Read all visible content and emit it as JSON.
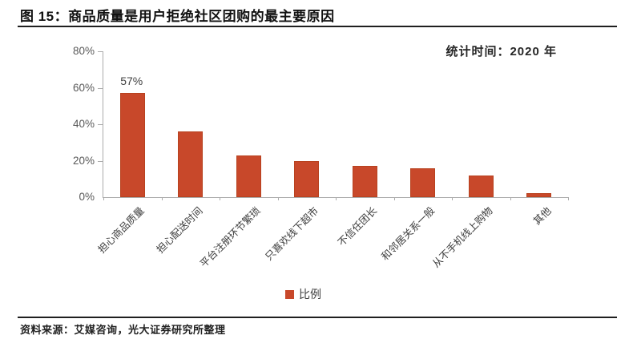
{
  "header": {
    "title": "图 15：商品质量是用户拒绝社区团购的最主要原因"
  },
  "chart_data": {
    "type": "bar",
    "title": "商品质量是用户拒绝社区团购的最主要原因",
    "annotation": "统计时间：2020 年",
    "categories": [
      "担心商品质量",
      "担心配送时间",
      "平台注册环节繁琐",
      "只喜欢线下超市",
      "不信任团长",
      "和邻居关系一般",
      "从不手机线上购物",
      "其他"
    ],
    "values": [
      57,
      36,
      23,
      20,
      17,
      16,
      12,
      2
    ],
    "unit": "%",
    "data_labels": {
      "0": "57%"
    },
    "y_ticks": [
      "0%",
      "20%",
      "40%",
      "60%",
      "80%"
    ],
    "ylim": [
      0,
      80
    ],
    "grid": false,
    "bar_color": "#c8482a",
    "axis_color": "#ababab",
    "legend_position": "bottom-center",
    "legend": [
      {
        "label": "比例",
        "color": "#c8482a"
      }
    ]
  },
  "footer": {
    "source": "资料来源：艾媒咨询，光大证券研究所整理"
  }
}
